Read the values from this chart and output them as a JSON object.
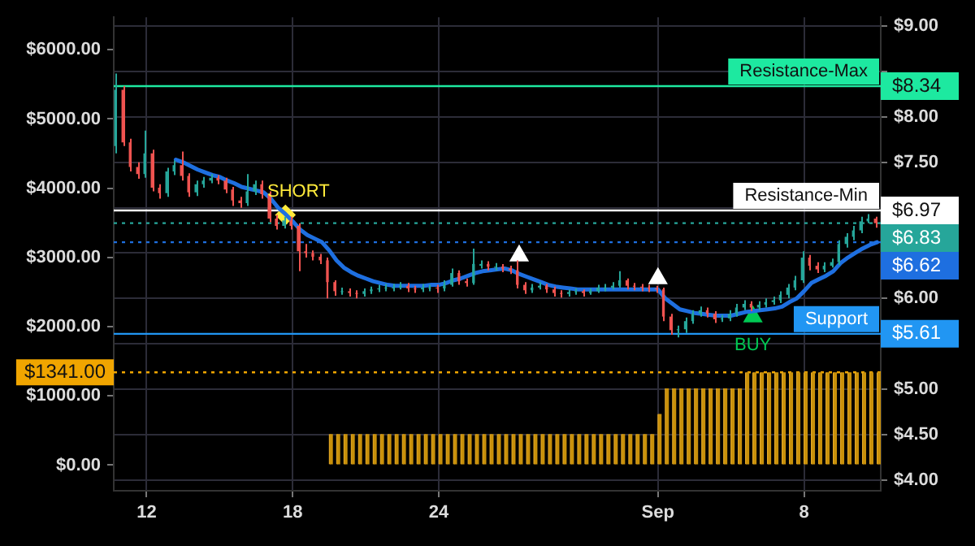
{
  "chart_data": {
    "type": "candlestick",
    "categories": [
      null,
      null,
      null,
      null,
      "12",
      null,
      null,
      null,
      null,
      null,
      null,
      null,
      null,
      null,
      null,
      null,
      null,
      null,
      null,
      null,
      null,
      null,
      null,
      null,
      "18",
      null,
      null,
      null,
      null,
      null,
      null,
      null,
      null,
      null,
      null,
      null,
      null,
      null,
      null,
      null,
      null,
      null,
      null,
      null,
      "24",
      null,
      null,
      null,
      null,
      null,
      null,
      null,
      null,
      null,
      null,
      null,
      null,
      null,
      null,
      null,
      null,
      null,
      null,
      null,
      null,
      null,
      null,
      null,
      null,
      null,
      null,
      null,
      null,
      null,
      "Sep",
      null,
      null,
      null,
      null,
      null,
      null,
      null,
      null,
      null,
      null,
      null,
      null,
      null,
      null,
      null,
      null,
      null,
      null,
      null,
      "8",
      null,
      null,
      null,
      null,
      null,
      null,
      null,
      null,
      null,
      null
    ],
    "series": [
      {
        "type": "bar",
        "axis": "y",
        "color": "#c8900a",
        "values": [
          0,
          0,
          0,
          0,
          0,
          0,
          0,
          0,
          0,
          0,
          0,
          0,
          0,
          0,
          0,
          0,
          0,
          0,
          0,
          0,
          0,
          0,
          0,
          0,
          0,
          0,
          0,
          0,
          0,
          450,
          450,
          450,
          450,
          450,
          450,
          450,
          450,
          450,
          450,
          450,
          450,
          450,
          450,
          450,
          450,
          450,
          450,
          450,
          450,
          450,
          450,
          450,
          450,
          450,
          450,
          450,
          450,
          450,
          450,
          450,
          450,
          450,
          450,
          450,
          450,
          450,
          450,
          450,
          450,
          450,
          450,
          450,
          450,
          450,
          740,
          1110,
          1110,
          1110,
          1110,
          1110,
          1110,
          1110,
          1110,
          1110,
          1110,
          1110,
          1341,
          1341,
          1341,
          1341,
          1341,
          1341,
          1341,
          1341,
          1341,
          1341,
          1341,
          1341,
          1341,
          1341,
          1341,
          1341,
          1341,
          1341,
          1341
        ]
      },
      {
        "type": "candlestick",
        "axis": "y2",
        "ohlc": [
          [
            7.68,
            8.48,
            7.6,
            8.3
          ],
          [
            8.3,
            8.34,
            7.68,
            7.72
          ],
          [
            7.72,
            7.76,
            7.4,
            7.45
          ],
          [
            7.45,
            7.5,
            7.32,
            7.37
          ],
          [
            7.37,
            7.85,
            7.33,
            7.6
          ],
          [
            7.6,
            7.64,
            7.18,
            7.22
          ],
          [
            7.22,
            7.26,
            7.1,
            7.16
          ],
          [
            7.16,
            7.44,
            7.12,
            7.4
          ],
          [
            7.4,
            7.52,
            7.36,
            7.47
          ],
          [
            7.47,
            7.62,
            7.3,
            7.35
          ],
          [
            7.35,
            7.38,
            7.12,
            7.17
          ],
          [
            7.17,
            7.3,
            7.13,
            7.26
          ],
          [
            7.26,
            7.34,
            7.22,
            7.3
          ],
          [
            7.3,
            7.37,
            7.27,
            7.33
          ],
          [
            7.33,
            7.36,
            7.26,
            7.3
          ],
          [
            7.3,
            7.33,
            7.16,
            7.2
          ],
          [
            7.2,
            7.23,
            7.02,
            7.08
          ],
          [
            7.08,
            7.12,
            7.0,
            7.05
          ],
          [
            7.05,
            7.37,
            7.02,
            7.18
          ],
          [
            7.18,
            7.3,
            7.14,
            7.26
          ],
          [
            7.26,
            7.3,
            7.1,
            7.15
          ],
          [
            7.15,
            7.18,
            6.84,
            6.88
          ],
          [
            6.88,
            6.92,
            6.76,
            6.8
          ],
          [
            6.8,
            6.9,
            6.77,
            6.86
          ],
          [
            6.86,
            6.9,
            6.76,
            6.8
          ],
          [
            6.8,
            6.83,
            6.3,
            6.52
          ],
          [
            6.52,
            6.6,
            6.45,
            6.5
          ],
          [
            6.5,
            6.53,
            6.42,
            6.46
          ],
          [
            6.46,
            6.49,
            6.38,
            6.42
          ],
          [
            6.42,
            6.45,
            6.0,
            6.18
          ],
          [
            6.18,
            6.2,
            6.03,
            6.08
          ],
          [
            6.07,
            6.12,
            6.04,
            6.08
          ],
          [
            6.08,
            6.11,
            6.02,
            6.06
          ],
          [
            6.06,
            6.09,
            6.0,
            6.05
          ],
          [
            6.05,
            6.11,
            6.02,
            6.08
          ],
          [
            6.08,
            6.13,
            6.05,
            6.1
          ],
          [
            6.1,
            6.15,
            6.07,
            6.11
          ],
          [
            6.11,
            6.16,
            6.08,
            6.12
          ],
          [
            6.11,
            6.16,
            6.08,
            6.12
          ],
          [
            6.12,
            6.18,
            6.1,
            6.14
          ],
          [
            6.14,
            6.17,
            6.07,
            6.11
          ],
          [
            6.11,
            6.14,
            6.06,
            6.1
          ],
          [
            6.1,
            6.16,
            6.07,
            6.12
          ],
          [
            6.11,
            6.15,
            6.08,
            6.12
          ],
          [
            6.12,
            6.15,
            6.06,
            6.11
          ],
          [
            6.11,
            6.2,
            6.08,
            6.15
          ],
          [
            6.15,
            6.33,
            6.13,
            6.28
          ],
          [
            6.28,
            6.31,
            6.15,
            6.19
          ],
          [
            6.19,
            6.22,
            6.13,
            6.17
          ],
          [
            6.17,
            6.55,
            6.15,
            6.38
          ],
          [
            6.36,
            6.42,
            6.33,
            6.38
          ],
          [
            6.38,
            6.41,
            6.31,
            6.35
          ],
          [
            6.34,
            6.39,
            6.31,
            6.35
          ],
          [
            6.35,
            6.38,
            6.29,
            6.33
          ],
          [
            6.33,
            6.36,
            6.27,
            6.31
          ],
          [
            6.31,
            6.42,
            6.11,
            6.15
          ],
          [
            6.15,
            6.18,
            6.05,
            6.09
          ],
          [
            6.09,
            6.16,
            6.06,
            6.12
          ],
          [
            6.12,
            6.18,
            6.1,
            6.14
          ],
          [
            6.14,
            6.16,
            6.06,
            6.1
          ],
          [
            6.1,
            6.13,
            6.02,
            6.06
          ],
          [
            6.06,
            6.09,
            6.01,
            6.05
          ],
          [
            6.05,
            6.1,
            6.02,
            6.07
          ],
          [
            6.07,
            6.11,
            6.04,
            6.08
          ],
          [
            6.08,
            6.1,
            6.02,
            6.06
          ],
          [
            6.06,
            6.11,
            6.04,
            6.08
          ],
          [
            6.08,
            6.15,
            6.06,
            6.12
          ],
          [
            6.11,
            6.16,
            6.08,
            6.12
          ],
          [
            6.12,
            6.18,
            6.1,
            6.14
          ],
          [
            6.14,
            6.3,
            6.12,
            6.2
          ],
          [
            6.2,
            6.22,
            6.1,
            6.14
          ],
          [
            6.14,
            6.17,
            6.09,
            6.13
          ],
          [
            6.13,
            6.16,
            6.08,
            6.12
          ],
          [
            6.12,
            6.15,
            6.07,
            6.11
          ],
          [
            6.11,
            6.14,
            6.06,
            6.1
          ],
          [
            6.1,
            6.12,
            5.75,
            5.8
          ],
          [
            5.8,
            5.83,
            5.6,
            5.65
          ],
          [
            5.65,
            5.7,
            5.57,
            5.66
          ],
          [
            5.66,
            5.79,
            5.62,
            5.75
          ],
          [
            5.75,
            5.87,
            5.72,
            5.83
          ],
          [
            5.83,
            5.91,
            5.8,
            5.87
          ],
          [
            5.87,
            5.9,
            5.79,
            5.83
          ],
          [
            5.83,
            5.86,
            5.73,
            5.77
          ],
          [
            5.77,
            5.82,
            5.74,
            5.78
          ],
          [
            5.78,
            5.87,
            5.75,
            5.83
          ],
          [
            5.83,
            5.94,
            5.8,
            5.9
          ],
          [
            5.9,
            5.98,
            5.87,
            5.94
          ],
          [
            5.94,
            5.97,
            5.86,
            5.9
          ],
          [
            5.9,
            5.97,
            5.87,
            5.93
          ],
          [
            5.93,
            6.0,
            5.9,
            5.96
          ],
          [
            5.96,
            6.02,
            5.93,
            5.98
          ],
          [
            5.98,
            6.08,
            5.95,
            6.04
          ],
          [
            6.04,
            6.16,
            6.0,
            6.12
          ],
          [
            6.12,
            6.25,
            6.09,
            6.2
          ],
          [
            6.2,
            6.52,
            6.17,
            6.45
          ],
          [
            6.45,
            6.48,
            6.31,
            6.36
          ],
          [
            6.36,
            6.4,
            6.28,
            6.32
          ],
          [
            6.32,
            6.4,
            6.29,
            6.36
          ],
          [
            6.36,
            6.44,
            6.34,
            6.4
          ],
          [
            6.4,
            6.64,
            6.37,
            6.6
          ],
          [
            6.6,
            6.72,
            6.56,
            6.68
          ],
          [
            6.68,
            6.8,
            6.64,
            6.75
          ],
          [
            6.75,
            6.9,
            6.72,
            6.85
          ],
          [
            6.85,
            6.93,
            6.83,
            6.88
          ],
          [
            6.88,
            6.9,
            6.78,
            6.83
          ]
        ],
        "colors": [
          "#26a69a",
          "#ef5350",
          "#ef5350",
          "#ef5350",
          "#26a69a",
          "#ef5350",
          "#ef5350",
          "#26a69a",
          "#26a69a",
          "#ef5350",
          "#ef5350",
          "#26a69a",
          "#26a69a",
          "#26a69a",
          "#ef5350",
          "#ef5350",
          "#ef5350",
          "#ef5350",
          "#26a69a",
          "#26a69a",
          "#ef5350",
          "#ef5350",
          "#ef5350",
          "#26a69a",
          "#ef5350",
          "#ef5350",
          "#ef5350",
          "#ef5350",
          "#ef5350",
          "#ef5350",
          "#ef5350",
          "#26a69a",
          "#ef5350",
          "#ef5350",
          "#26a69a",
          "#26a69a",
          "#26a69a",
          "#26a69a",
          "#26a69a",
          "#26a69a",
          "#ef5350",
          "#ef5350",
          "#26a69a",
          "#26a69a",
          "#ef5350",
          "#26a69a",
          "#26a69a",
          "#ef5350",
          "#ef5350",
          "#26a69a",
          "#26a69a",
          "#ef5350",
          "#26a69a",
          "#ef5350",
          "#ef5350",
          "#ef5350",
          "#ef5350",
          "#26a69a",
          "#26a69a",
          "#ef5350",
          "#ef5350",
          "#ef5350",
          "#26a69a",
          "#26a69a",
          "#ef5350",
          "#26a69a",
          "#26a69a",
          "#26a69a",
          "#26a69a",
          "#26a69a",
          "#ef5350",
          "#ef5350",
          "#ef5350",
          "#ef5350",
          "#ef5350",
          "#ef5350",
          "#ef5350",
          "#26a69a",
          "#26a69a",
          "#26a69a",
          "#26a69a",
          "#ef5350",
          "#ef5350",
          "#26a69a",
          "#26a69a",
          "#26a69a",
          "#26a69a",
          "#ef5350",
          "#26a69a",
          "#26a69a",
          "#26a69a",
          "#26a69a",
          "#26a69a",
          "#26a69a",
          "#26a69a",
          "#ef5350",
          "#ef5350",
          "#26a69a",
          "#26a69a",
          "#26a69a",
          "#26a69a",
          "#26a69a",
          "#26a69a",
          "#26a69a",
          "#ef5350"
        ]
      },
      {
        "type": "line",
        "axis": "y2",
        "color": "#1e6fe0",
        "line_style": "solid",
        "values": [
          null,
          null,
          null,
          null,
          null,
          null,
          null,
          null,
          7.53,
          7.5,
          7.46,
          7.42,
          7.39,
          7.36,
          7.34,
          7.3,
          7.27,
          7.23,
          7.21,
          7.19,
          7.17,
          7.1,
          7.0,
          6.93,
          6.85,
          6.76,
          6.7,
          6.66,
          6.62,
          6.53,
          6.42,
          6.34,
          6.29,
          6.25,
          6.22,
          6.19,
          6.17,
          6.15,
          6.14,
          6.14,
          6.14,
          6.14,
          6.14,
          6.15,
          6.15,
          6.17,
          6.2,
          6.22,
          6.25,
          6.28,
          6.3,
          6.31,
          6.32,
          6.33,
          6.31,
          6.27,
          6.24,
          6.21,
          6.18,
          6.15,
          6.13,
          6.12,
          6.11,
          6.1,
          6.1,
          6.1,
          6.1,
          6.1,
          6.1,
          6.1,
          6.1,
          6.1,
          6.1,
          6.1,
          6.1,
          6.0,
          5.94,
          5.88,
          5.86,
          5.84,
          5.83,
          5.82,
          5.81,
          5.81,
          5.81,
          5.83,
          5.85,
          5.86,
          5.87,
          5.88,
          5.89,
          5.91,
          5.96,
          6.0,
          6.08,
          6.17,
          6.21,
          6.25,
          6.3,
          6.39,
          6.45,
          6.5,
          6.55,
          6.59,
          6.62
        ]
      },
      {
        "type": "scatter",
        "axis": "y2",
        "name": "SHORT",
        "color": "#ffeb3b",
        "marker": "diamond",
        "values": [
          null,
          null,
          null,
          null,
          null,
          null,
          null,
          null,
          null,
          null,
          null,
          null,
          null,
          null,
          null,
          null,
          null,
          null,
          null,
          null,
          null,
          null,
          null,
          6.92,
          null,
          null,
          null,
          null,
          null,
          null,
          null,
          null,
          null,
          null,
          null,
          null,
          null,
          null,
          null,
          null,
          null,
          null,
          null,
          null,
          null,
          null,
          null,
          null,
          null,
          null,
          null,
          null,
          null,
          null,
          null,
          null,
          null,
          null,
          null,
          null,
          null,
          null,
          null,
          null,
          null,
          null,
          null,
          null,
          null,
          null,
          null,
          null,
          null,
          null,
          null,
          null,
          null,
          null,
          null,
          null,
          null,
          null,
          null,
          null,
          null,
          null,
          null,
          null,
          null,
          null,
          null,
          null,
          null,
          null,
          null,
          null,
          null,
          null,
          null,
          null,
          null,
          null,
          null,
          null,
          null
        ]
      },
      {
        "type": "scatter",
        "axis": "y2",
        "name": "BUY",
        "color": "#00c853",
        "marker": "triangle",
        "values": [
          null,
          null,
          null,
          null,
          null,
          null,
          null,
          null,
          null,
          null,
          null,
          null,
          null,
          null,
          null,
          null,
          null,
          null,
          null,
          null,
          null,
          null,
          null,
          null,
          null,
          null,
          null,
          null,
          null,
          null,
          null,
          null,
          null,
          null,
          null,
          null,
          null,
          null,
          null,
          null,
          null,
          null,
          null,
          null,
          null,
          null,
          null,
          null,
          null,
          null,
          null,
          null,
          null,
          null,
          null,
          null,
          null,
          null,
          null,
          null,
          null,
          null,
          null,
          null,
          null,
          null,
          null,
          null,
          null,
          null,
          null,
          null,
          null,
          null,
          null,
          null,
          null,
          null,
          null,
          null,
          null,
          null,
          null,
          null,
          null,
          null,
          null,
          5.8,
          null,
          null,
          null,
          null,
          null,
          null,
          null,
          null,
          null,
          null,
          null,
          null,
          null,
          null,
          null,
          null,
          null
        ]
      },
      {
        "type": "scatter",
        "axis": "y2",
        "color": "#ffffff",
        "marker": "triangle",
        "values": [
          null,
          null,
          null,
          null,
          null,
          null,
          null,
          null,
          null,
          null,
          null,
          null,
          null,
          null,
          null,
          null,
          null,
          null,
          null,
          null,
          null,
          null,
          null,
          null,
          null,
          null,
          null,
          null,
          null,
          null,
          null,
          null,
          null,
          null,
          null,
          null,
          null,
          null,
          null,
          null,
          null,
          null,
          null,
          null,
          null,
          null,
          null,
          null,
          null,
          null,
          null,
          null,
          null,
          null,
          null,
          6.47,
          null,
          null,
          null,
          null,
          null,
          null,
          null,
          null,
          null,
          null,
          null,
          null,
          null,
          null,
          null,
          null,
          null,
          null,
          6.22,
          null,
          null,
          null,
          null,
          null,
          null,
          null,
          null,
          null,
          null,
          null,
          null,
          null,
          null,
          null,
          null,
          null,
          null,
          null,
          null,
          null,
          null,
          null,
          null,
          null,
          null,
          null,
          null,
          null,
          null
        ]
      }
    ],
    "ylim": [
      -370,
      6470
    ],
    "yticks": [
      {
        "value": 0,
        "label": "$0.00"
      },
      {
        "value": 1000,
        "label": "$1000.00"
      },
      {
        "value": 2000,
        "label": "$2000.00"
      },
      {
        "value": 3000,
        "label": "$3000.00"
      },
      {
        "value": 4000,
        "label": "$4000.00"
      },
      {
        "value": 5000,
        "label": "$5000.00"
      },
      {
        "value": 6000,
        "label": "$6000.00"
      }
    ],
    "y2lim": [
      3.88,
      9.1
    ],
    "y2ticks": [
      {
        "value": 4,
        "label": "$4.00"
      },
      {
        "value": 4.5,
        "label": "$4.50"
      },
      {
        "value": 5,
        "label": "$5.00"
      },
      {
        "value": 5.5,
        "label": null
      },
      {
        "value": 6,
        "label": "$6.00"
      },
      {
        "value": 6.5,
        "label": null
      },
      {
        "value": 7,
        "label": null
      },
      {
        "value": 7.5,
        "label": "$7.50"
      },
      {
        "value": 8,
        "label": "$8.00"
      },
      {
        "value": 8.5,
        "label": null
      },
      {
        "value": 9,
        "label": "$9.00"
      }
    ],
    "ref_lines": [
      {
        "axis": "y2",
        "value": 8.34,
        "label": "Resistance-Max",
        "color": "#1de9a0",
        "line_style": "solid"
      },
      {
        "axis": "y2",
        "value": 6.97,
        "label": "Resistance-Min",
        "color": "#ffffff",
        "line_style": "solid"
      },
      {
        "axis": "y2",
        "value": 6.83,
        "color": "#26a69a",
        "line_style": "dotted"
      },
      {
        "axis": "y2",
        "value": 6.62,
        "color": "#1e6fe0",
        "line_style": "dotted"
      },
      {
        "axis": "y2",
        "value": 5.61,
        "label": "Support",
        "color": "#2196f3",
        "line_style": "solid"
      },
      {
        "axis": "y",
        "value": 1341,
        "color": "#f0a500",
        "line_style": "dotted"
      }
    ],
    "annotations": [
      "$8.34",
      "$6.97",
      "$6.83",
      "$6.62",
      "$5.61",
      "$1341.00"
    ],
    "grid": true,
    "legend": false
  }
}
